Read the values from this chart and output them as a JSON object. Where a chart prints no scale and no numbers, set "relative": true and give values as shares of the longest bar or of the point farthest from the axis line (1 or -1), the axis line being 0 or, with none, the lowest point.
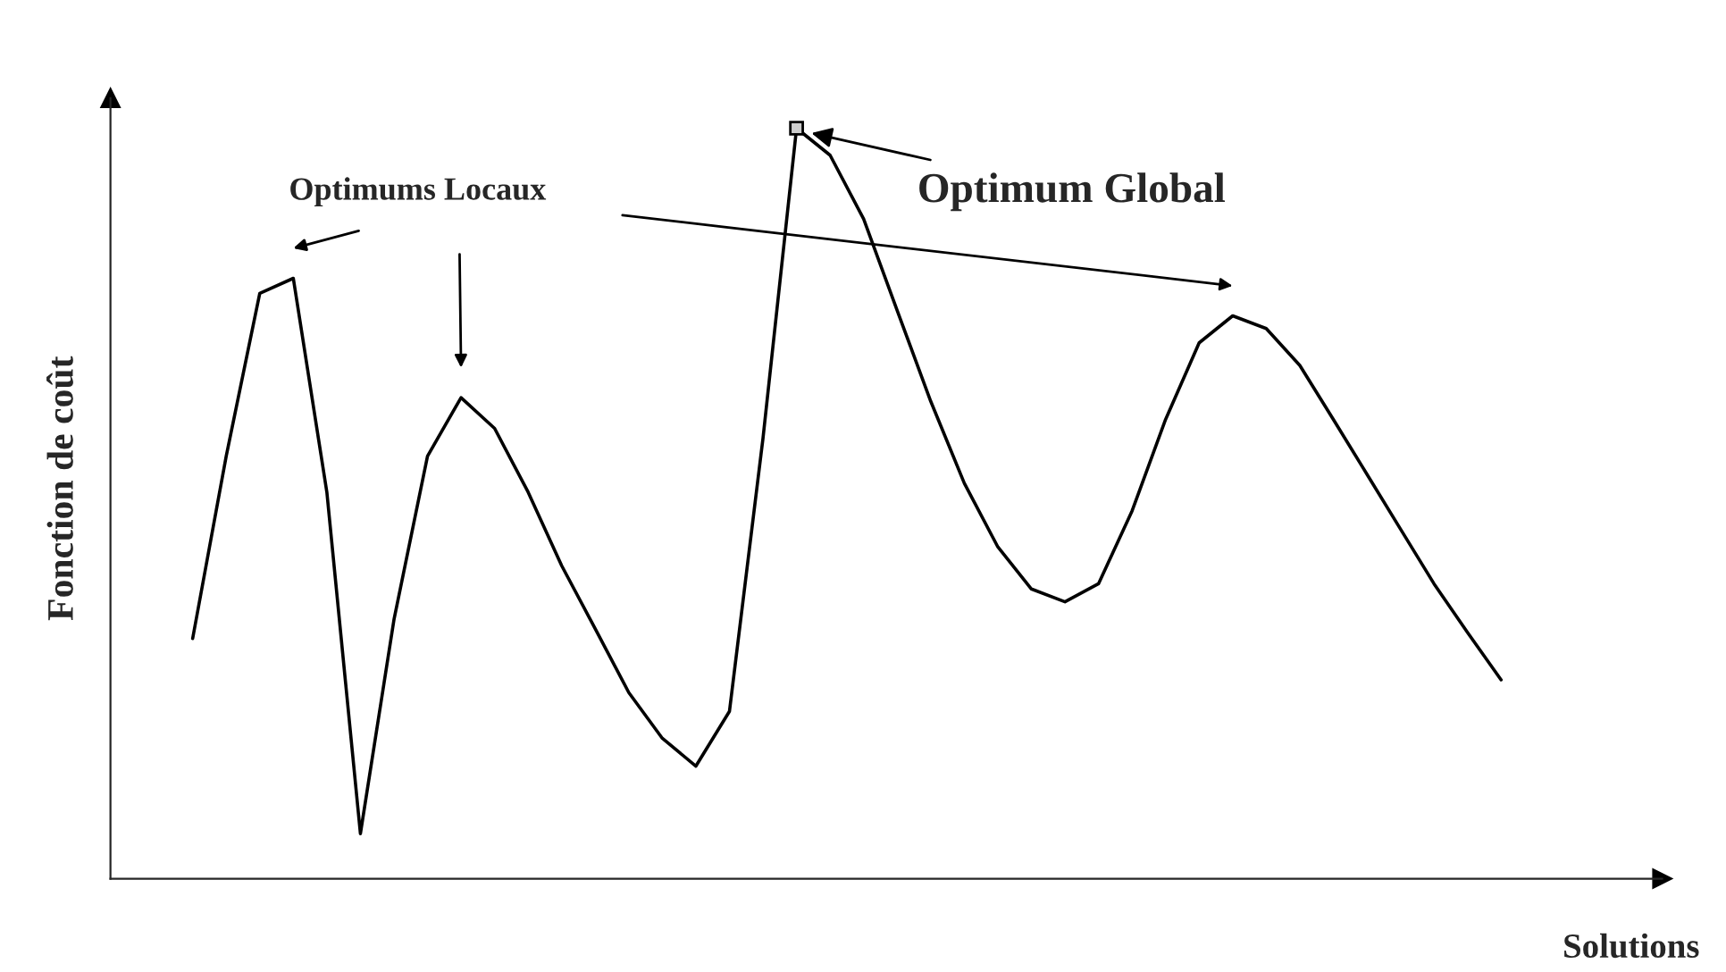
{
  "chart_data": {
    "type": "line",
    "relative": true,
    "xlabel": "Solutions",
    "ylabel": "Fonction de coût",
    "categories": [
      null,
      null,
      null,
      null,
      null,
      null,
      null,
      null,
      null,
      null,
      null,
      null,
      null,
      null,
      null,
      null,
      null,
      null,
      null,
      null,
      null,
      null,
      null,
      null,
      null,
      null,
      null,
      null,
      null,
      null,
      null,
      null,
      null,
      null,
      null,
      null,
      null,
      null,
      null,
      null
    ],
    "series": [
      {
        "color": "#000000",
        "values": [
          0.32,
          0.563,
          0.78,
          0.8,
          0.515,
          0.06,
          0.345,
          0.563,
          0.641,
          0.6,
          0.515,
          0.417,
          0.333,
          0.248,
          0.187,
          0.15,
          0.223,
          0.587,
          1.0,
          0.964,
          0.879,
          0.757,
          0.636,
          0.527,
          0.442,
          0.386,
          0.369,
          0.393,
          0.49,
          0.612,
          0.714,
          0.75,
          0.733,
          0.684,
          0.612,
          0.539,
          0.466,
          0.393,
          0.328,
          0.265
        ]
      }
    ],
    "marker": "none",
    "line_style": "solid",
    "annotations": [
      "Optimums Locaux",
      "Optimum Global"
    ]
  }
}
